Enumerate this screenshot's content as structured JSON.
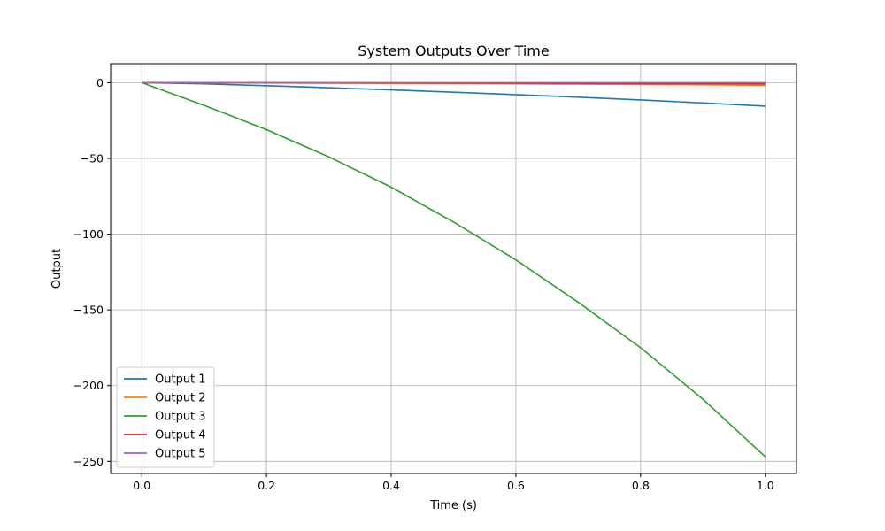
{
  "chart_data": {
    "type": "line",
    "title": "System Outputs Over Time",
    "xlabel": "Time (s)",
    "ylabel": "Output",
    "xlim": [
      -0.05,
      1.05
    ],
    "ylim": [
      -258,
      12.5
    ],
    "xticks": [
      0.0,
      0.2,
      0.4,
      0.6,
      0.8,
      1.0
    ],
    "xtick_labels": [
      "0.0",
      "0.2",
      "0.4",
      "0.6",
      "0.8",
      "1.0"
    ],
    "yticks": [
      0,
      -50,
      -100,
      -150,
      -200,
      -250
    ],
    "ytick_labels": [
      "0",
      "−50",
      "−100",
      "−150",
      "−200",
      "−250"
    ],
    "grid": true,
    "legend_position": "lower-left",
    "x": [
      0.0,
      0.1,
      0.2,
      0.3,
      0.4,
      0.5,
      0.6,
      0.7,
      0.8,
      0.9,
      1.0
    ],
    "series": [
      {
        "name": "Output 1",
        "color": "#1f77b4",
        "values": [
          0,
          -0.8,
          -2.0,
          -3.3,
          -4.8,
          -6.3,
          -7.9,
          -9.6,
          -11.4,
          -13.4,
          -15.5
        ]
      },
      {
        "name": "Output 2",
        "color": "#ff7f0e",
        "values": [
          0,
          -0.1,
          -0.2,
          -0.3,
          -0.5,
          -0.6,
          -0.8,
          -1.0,
          -1.2,
          -1.4,
          -1.7
        ]
      },
      {
        "name": "Output 3",
        "color": "#2ca02c",
        "values": [
          0,
          -15,
          -31,
          -49,
          -69,
          -92,
          -117,
          -145,
          -175,
          -209,
          -247
        ]
      },
      {
        "name": "Output 4",
        "color": "#d62728",
        "values": [
          0,
          -0.05,
          -0.1,
          -0.15,
          -0.2,
          -0.3,
          -0.4,
          -0.5,
          -0.6,
          -0.7,
          -0.8
        ]
      },
      {
        "name": "Output 5",
        "color": "#9467bd",
        "values": [
          0,
          0,
          0,
          0,
          0,
          0,
          0,
          0,
          0,
          0,
          0
        ]
      }
    ]
  }
}
